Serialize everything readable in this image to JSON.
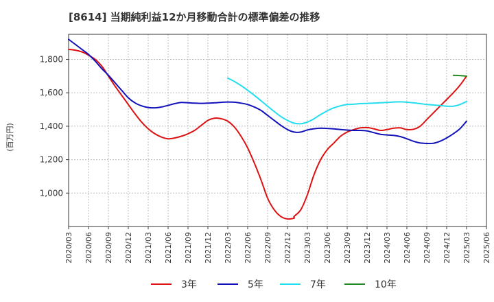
{
  "chart_data": {
    "type": "line",
    "title": "[8614]  当期純利益12か月移動合計の標準偏差の推移",
    "ylabel": "(百万円)",
    "xlabel": "",
    "ylim": [
      800,
      1950
    ],
    "y_ticks": [
      1000,
      1200,
      1400,
      1600,
      1800
    ],
    "y_tick_labels": [
      "1,000",
      "1,200",
      "1,400",
      "1,600",
      "1,800"
    ],
    "x_ticks": [
      "2020/03",
      "2020/06",
      "2020/09",
      "2020/12",
      "2021/03",
      "2021/06",
      "2021/09",
      "2021/12",
      "2022/03",
      "2022/06",
      "2022/09",
      "2022/12",
      "2023/03",
      "2023/06",
      "2023/09",
      "2023/12",
      "2024/03",
      "2024/06",
      "2024/09",
      "2024/12",
      "2025/03",
      "2025/06"
    ],
    "grid": true,
    "legend_position": "bottom",
    "series": [
      {
        "name": "3年",
        "color": "#dd1111",
        "points": [
          [
            "2020/03",
            1860
          ],
          [
            "2020/04",
            1855
          ],
          [
            "2020/05",
            1845
          ],
          [
            "2020/06",
            1825
          ],
          [
            "2020/07",
            1800
          ],
          [
            "2020/08",
            1760
          ],
          [
            "2020/09",
            1700
          ],
          [
            "2020/10",
            1640
          ],
          [
            "2020/11",
            1585
          ],
          [
            "2020/12",
            1530
          ],
          [
            "2021/01",
            1475
          ],
          [
            "2021/02",
            1425
          ],
          [
            "2021/03",
            1385
          ],
          [
            "2021/04",
            1355
          ],
          [
            "2021/05",
            1335
          ],
          [
            "2021/06",
            1325
          ],
          [
            "2021/07",
            1330
          ],
          [
            "2021/08",
            1340
          ],
          [
            "2021/09",
            1355
          ],
          [
            "2021/10",
            1375
          ],
          [
            "2021/11",
            1405
          ],
          [
            "2021/12",
            1435
          ],
          [
            "2022/01",
            1448
          ],
          [
            "2022/02",
            1445
          ],
          [
            "2022/03",
            1430
          ],
          [
            "2022/04",
            1395
          ],
          [
            "2022/05",
            1340
          ],
          [
            "2022/06",
            1270
          ],
          [
            "2022/07",
            1180
          ],
          [
            "2022/08",
            1080
          ],
          [
            "2022/09",
            970
          ],
          [
            "2022/10",
            900
          ],
          [
            "2022/11",
            860
          ],
          [
            "2022/12",
            845
          ],
          [
            "2022/13",
            850
          ],
          [
            "2023/01",
            860
          ],
          [
            "2023/02",
            900
          ],
          [
            "2023/03",
            990
          ],
          [
            "2023/04",
            1110
          ],
          [
            "2023/05",
            1200
          ],
          [
            "2023/06",
            1260
          ],
          [
            "2023/07",
            1300
          ],
          [
            "2023/08",
            1340
          ],
          [
            "2023/09",
            1365
          ],
          [
            "2023/10",
            1380
          ],
          [
            "2023/11",
            1390
          ],
          [
            "2023/12",
            1392
          ],
          [
            "2024/01",
            1385
          ],
          [
            "2024/02",
            1375
          ],
          [
            "2024/03",
            1380
          ],
          [
            "2024/04",
            1388
          ],
          [
            "2024/05",
            1390
          ],
          [
            "2024/06",
            1380
          ],
          [
            "2024/07",
            1382
          ],
          [
            "2024/08",
            1400
          ],
          [
            "2024/09",
            1440
          ],
          [
            "2024/10",
            1480
          ],
          [
            "2024/11",
            1520
          ],
          [
            "2024/12",
            1560
          ],
          [
            "2025/01",
            1600
          ],
          [
            "2025/02",
            1645
          ],
          [
            "2025/03",
            1700
          ]
        ]
      },
      {
        "name": "5年",
        "color": "#1111bb",
        "points": [
          [
            "2020/03",
            1920
          ],
          [
            "2020/04",
            1890
          ],
          [
            "2020/05",
            1860
          ],
          [
            "2020/06",
            1830
          ],
          [
            "2020/07",
            1790
          ],
          [
            "2020/08",
            1745
          ],
          [
            "2020/09",
            1705
          ],
          [
            "2020/10",
            1660
          ],
          [
            "2020/11",
            1615
          ],
          [
            "2020/12",
            1570
          ],
          [
            "2021/01",
            1540
          ],
          [
            "2021/02",
            1522
          ],
          [
            "2021/03",
            1512
          ],
          [
            "2021/04",
            1510
          ],
          [
            "2021/05",
            1515
          ],
          [
            "2021/06",
            1525
          ],
          [
            "2021/07",
            1535
          ],
          [
            "2021/08",
            1542
          ],
          [
            "2021/09",
            1540
          ],
          [
            "2021/10",
            1538
          ],
          [
            "2021/11",
            1537
          ],
          [
            "2021/12",
            1538
          ],
          [
            "2022/01",
            1540
          ],
          [
            "2022/02",
            1543
          ],
          [
            "2022/03",
            1545
          ],
          [
            "2022/04",
            1544
          ],
          [
            "2022/05",
            1538
          ],
          [
            "2022/06",
            1530
          ],
          [
            "2022/07",
            1515
          ],
          [
            "2022/08",
            1495
          ],
          [
            "2022/09",
            1465
          ],
          [
            "2022/10",
            1435
          ],
          [
            "2022/11",
            1405
          ],
          [
            "2022/12",
            1380
          ],
          [
            "2023/01",
            1365
          ],
          [
            "2023/02",
            1365
          ],
          [
            "2023/03",
            1378
          ],
          [
            "2023/04",
            1385
          ],
          [
            "2023/05",
            1388
          ],
          [
            "2023/06",
            1387
          ],
          [
            "2023/07",
            1384
          ],
          [
            "2023/08",
            1380
          ],
          [
            "2023/09",
            1377
          ],
          [
            "2023/10",
            1375
          ],
          [
            "2023/11",
            1375
          ],
          [
            "2023/12",
            1372
          ],
          [
            "2024/01",
            1362
          ],
          [
            "2024/02",
            1352
          ],
          [
            "2024/03",
            1348
          ],
          [
            "2024/04",
            1345
          ],
          [
            "2024/05",
            1338
          ],
          [
            "2024/06",
            1325
          ],
          [
            "2024/07",
            1310
          ],
          [
            "2024/08",
            1300
          ],
          [
            "2024/09",
            1297
          ],
          [
            "2024/10",
            1298
          ],
          [
            "2024/11",
            1310
          ],
          [
            "2024/12",
            1330
          ],
          [
            "2025/01",
            1355
          ],
          [
            "2025/02",
            1385
          ],
          [
            "2025/03",
            1430
          ]
        ]
      },
      {
        "name": "7年",
        "color": "#22ddee",
        "points": [
          [
            "2022/03",
            1688
          ],
          [
            "2022/04",
            1668
          ],
          [
            "2022/05",
            1643
          ],
          [
            "2022/06",
            1615
          ],
          [
            "2022/07",
            1585
          ],
          [
            "2022/08",
            1553
          ],
          [
            "2022/09",
            1520
          ],
          [
            "2022/10",
            1488
          ],
          [
            "2022/11",
            1458
          ],
          [
            "2022/12",
            1435
          ],
          [
            "2023/01",
            1418
          ],
          [
            "2023/02",
            1415
          ],
          [
            "2023/03",
            1425
          ],
          [
            "2023/04",
            1445
          ],
          [
            "2023/05",
            1470
          ],
          [
            "2023/06",
            1492
          ],
          [
            "2023/07",
            1510
          ],
          [
            "2023/08",
            1522
          ],
          [
            "2023/09",
            1530
          ],
          [
            "2023/10",
            1532
          ],
          [
            "2023/11",
            1535
          ],
          [
            "2023/12",
            1537
          ],
          [
            "2024/01",
            1538
          ],
          [
            "2024/02",
            1540
          ],
          [
            "2024/03",
            1542
          ],
          [
            "2024/04",
            1545
          ],
          [
            "2024/05",
            1546
          ],
          [
            "2024/06",
            1544
          ],
          [
            "2024/07",
            1540
          ],
          [
            "2024/08",
            1535
          ],
          [
            "2024/09",
            1530
          ],
          [
            "2024/10",
            1527
          ],
          [
            "2024/11",
            1524
          ],
          [
            "2024/12",
            1520
          ],
          [
            "2025/01",
            1520
          ],
          [
            "2025/02",
            1530
          ],
          [
            "2025/03",
            1548
          ]
        ]
      },
      {
        "name": "10年",
        "color": "#228822",
        "points": [
          [
            "2025/01",
            1705
          ],
          [
            "2025/02",
            1703
          ],
          [
            "2025/03",
            1700
          ]
        ]
      }
    ]
  }
}
